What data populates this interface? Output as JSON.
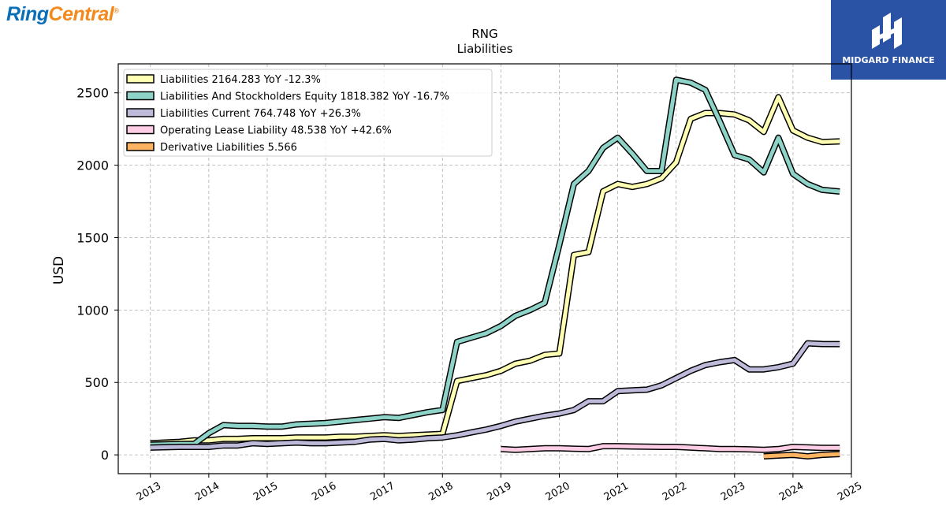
{
  "header": {
    "brand_part1": "Ring",
    "brand_part2": "Central",
    "brand_mark": "®",
    "badge_label": "MIDGARD FINANCE",
    "badge_icon": "midgard-m-icon"
  },
  "colors": {
    "brand_blue": "#0b6fb8",
    "brand_orange": "#f28a1e",
    "badge_bg": "#2a52a5"
  },
  "chart_data": {
    "type": "line",
    "title": "RNG",
    "subtitle": "Liabilities",
    "ylabel": "USD",
    "xlabel": "",
    "xlim": [
      2012.45,
      2025.0
    ],
    "ylim": [
      -130,
      2700
    ],
    "x_ticks": [
      2013,
      2014,
      2015,
      2016,
      2017,
      2018,
      2019,
      2020,
      2021,
      2022,
      2023,
      2024,
      2025
    ],
    "y_ticks": [
      0,
      500,
      1000,
      1500,
      2000,
      2500
    ],
    "grid": true,
    "legend_position": "top-left",
    "series": [
      {
        "name": "Liabilities",
        "legend": "Liabilities  2164.283 YoY -12.3%",
        "color": "#ffffb3",
        "points": [
          [
            2013.0,
            80
          ],
          [
            2013.5,
            90
          ],
          [
            2013.75,
            100
          ],
          [
            2014.0,
            100
          ],
          [
            2014.25,
            110
          ],
          [
            2014.5,
            110
          ],
          [
            2014.75,
            115
          ],
          [
            2015.0,
            115
          ],
          [
            2015.25,
            115
          ],
          [
            2015.5,
            120
          ],
          [
            2015.75,
            120
          ],
          [
            2016.0,
            120
          ],
          [
            2016.25,
            125
          ],
          [
            2016.5,
            125
          ],
          [
            2016.75,
            130
          ],
          [
            2017.0,
            135
          ],
          [
            2017.25,
            130
          ],
          [
            2017.5,
            135
          ],
          [
            2017.75,
            140
          ],
          [
            2018.0,
            145
          ],
          [
            2018.25,
            510
          ],
          [
            2018.5,
            530
          ],
          [
            2018.75,
            550
          ],
          [
            2019.0,
            580
          ],
          [
            2019.25,
            630
          ],
          [
            2019.5,
            650
          ],
          [
            2019.75,
            690
          ],
          [
            2020.0,
            700
          ],
          [
            2020.25,
            1380
          ],
          [
            2020.5,
            1400
          ],
          [
            2020.75,
            1820
          ],
          [
            2021.0,
            1870
          ],
          [
            2021.25,
            1850
          ],
          [
            2021.5,
            1870
          ],
          [
            2021.75,
            1910
          ],
          [
            2022.0,
            2020
          ],
          [
            2022.25,
            2320
          ],
          [
            2022.5,
            2360
          ],
          [
            2022.75,
            2360
          ],
          [
            2023.0,
            2350
          ],
          [
            2023.25,
            2310
          ],
          [
            2023.5,
            2230
          ],
          [
            2023.75,
            2470
          ],
          [
            2024.0,
            2240
          ],
          [
            2024.25,
            2190
          ],
          [
            2024.5,
            2160
          ],
          [
            2024.8,
            2164.283
          ]
        ]
      },
      {
        "name": "Liabilities And Stockholders Equity",
        "legend": "Liabilities And Stockholders Equity  1818.382 YoY -16.7%",
        "color": "#8dd3c7",
        "points": [
          [
            2013.0,
            70
          ],
          [
            2013.5,
            75
          ],
          [
            2013.75,
            75
          ],
          [
            2014.0,
            150
          ],
          [
            2014.25,
            205
          ],
          [
            2014.5,
            200
          ],
          [
            2014.75,
            200
          ],
          [
            2015.0,
            195
          ],
          [
            2015.25,
            195
          ],
          [
            2015.5,
            210
          ],
          [
            2015.75,
            215
          ],
          [
            2016.0,
            220
          ],
          [
            2016.25,
            230
          ],
          [
            2016.5,
            240
          ],
          [
            2016.75,
            250
          ],
          [
            2017.0,
            260
          ],
          [
            2017.25,
            255
          ],
          [
            2017.5,
            275
          ],
          [
            2017.75,
            295
          ],
          [
            2018.0,
            310
          ],
          [
            2018.25,
            780
          ],
          [
            2018.5,
            810
          ],
          [
            2018.75,
            840
          ],
          [
            2019.0,
            890
          ],
          [
            2019.25,
            960
          ],
          [
            2019.5,
            1000
          ],
          [
            2019.75,
            1050
          ],
          [
            2020.0,
            1450
          ],
          [
            2020.25,
            1870
          ],
          [
            2020.5,
            1960
          ],
          [
            2020.75,
            2120
          ],
          [
            2021.0,
            2190
          ],
          [
            2021.25,
            2080
          ],
          [
            2021.5,
            1960
          ],
          [
            2021.75,
            1960
          ],
          [
            2022.0,
            2590
          ],
          [
            2022.25,
            2570
          ],
          [
            2022.5,
            2520
          ],
          [
            2022.75,
            2300
          ],
          [
            2023.0,
            2070
          ],
          [
            2023.25,
            2040
          ],
          [
            2023.5,
            1950
          ],
          [
            2023.75,
            2190
          ],
          [
            2024.0,
            1940
          ],
          [
            2024.25,
            1870
          ],
          [
            2024.5,
            1830
          ],
          [
            2024.8,
            1818.382
          ]
        ]
      },
      {
        "name": "Liabilities Current",
        "legend": "Liabilities Current  764.748 YoY +26.3%",
        "color": "#bebada",
        "points": [
          [
            2013.0,
            50
          ],
          [
            2013.5,
            55
          ],
          [
            2013.75,
            55
          ],
          [
            2014.0,
            55
          ],
          [
            2014.25,
            65
          ],
          [
            2014.5,
            65
          ],
          [
            2014.75,
            80
          ],
          [
            2015.0,
            75
          ],
          [
            2015.25,
            80
          ],
          [
            2015.5,
            85
          ],
          [
            2015.75,
            80
          ],
          [
            2016.0,
            80
          ],
          [
            2016.25,
            85
          ],
          [
            2016.5,
            90
          ],
          [
            2016.75,
            105
          ],
          [
            2017.0,
            110
          ],
          [
            2017.25,
            100
          ],
          [
            2017.5,
            105
          ],
          [
            2017.75,
            115
          ],
          [
            2018.0,
            120
          ],
          [
            2018.25,
            135
          ],
          [
            2018.5,
            155
          ],
          [
            2018.75,
            175
          ],
          [
            2019.0,
            200
          ],
          [
            2019.25,
            230
          ],
          [
            2019.5,
            250
          ],
          [
            2019.75,
            270
          ],
          [
            2020.0,
            285
          ],
          [
            2020.25,
            310
          ],
          [
            2020.5,
            370
          ],
          [
            2020.75,
            370
          ],
          [
            2021.0,
            440
          ],
          [
            2021.25,
            445
          ],
          [
            2021.5,
            450
          ],
          [
            2021.75,
            480
          ],
          [
            2022.0,
            530
          ],
          [
            2022.25,
            580
          ],
          [
            2022.5,
            620
          ],
          [
            2022.75,
            640
          ],
          [
            2023.0,
            655
          ],
          [
            2023.25,
            590
          ],
          [
            2023.5,
            590
          ],
          [
            2023.75,
            605
          ],
          [
            2024.0,
            630
          ],
          [
            2024.25,
            770
          ],
          [
            2024.5,
            765
          ],
          [
            2024.8,
            764.748
          ]
        ]
      },
      {
        "name": "Operating Lease Liability",
        "legend": "Operating Lease Liability  48.538 YoY +42.6%",
        "color": "#fccde5",
        "points": [
          [
            2019.0,
            40
          ],
          [
            2019.25,
            35
          ],
          [
            2019.5,
            40
          ],
          [
            2019.75,
            45
          ],
          [
            2020.0,
            45
          ],
          [
            2020.25,
            42
          ],
          [
            2020.5,
            40
          ],
          [
            2020.75,
            60
          ],
          [
            2021.0,
            60
          ],
          [
            2021.25,
            58
          ],
          [
            2021.5,
            56
          ],
          [
            2021.75,
            55
          ],
          [
            2022.0,
            55
          ],
          [
            2022.25,
            50
          ],
          [
            2022.5,
            45
          ],
          [
            2022.75,
            40
          ],
          [
            2023.0,
            40
          ],
          [
            2023.25,
            38
          ],
          [
            2023.5,
            35
          ],
          [
            2023.75,
            40
          ],
          [
            2024.0,
            55
          ],
          [
            2024.25,
            52
          ],
          [
            2024.5,
            48
          ],
          [
            2024.8,
            48.538
          ]
        ]
      },
      {
        "name": "Derivative Liabilities",
        "legend": "Derivative Liabilities  5.566",
        "color": "#fdb462",
        "points": [
          [
            2023.5,
            -10
          ],
          [
            2023.75,
            -5
          ],
          [
            2024.0,
            0
          ],
          [
            2024.25,
            -10
          ],
          [
            2024.5,
            0
          ],
          [
            2024.8,
            5.566
          ]
        ]
      }
    ]
  }
}
